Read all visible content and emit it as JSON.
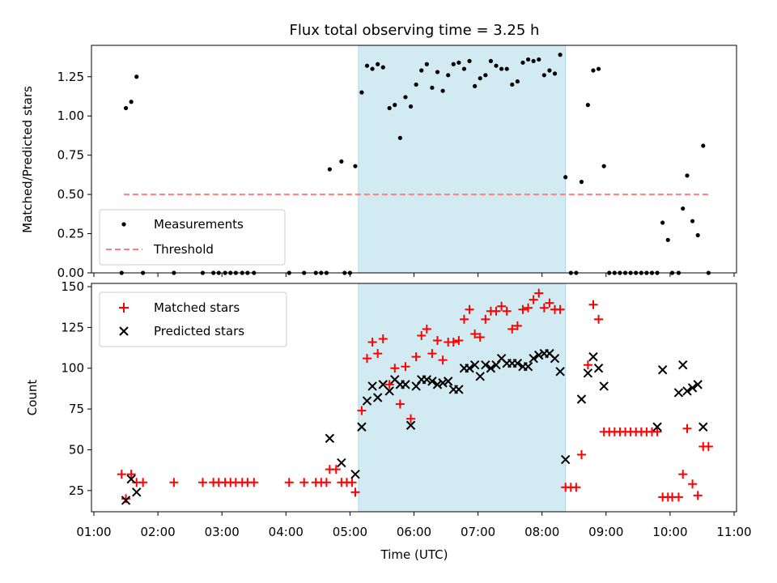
{
  "chart_data": [
    {
      "type": "scatter",
      "title": "Flux total observing time = 3.25 h",
      "ylabel": "Matched/Predicted stars",
      "xlabel": "",
      "xlim": [
        "01:00",
        "11:00"
      ],
      "ylim": [
        0,
        1.45
      ],
      "yticks": [
        "0.00",
        "0.25",
        "0.50",
        "0.75",
        "1.00",
        "1.25"
      ],
      "grid": false,
      "legend_position": "lower-left",
      "shaded_span": {
        "start": "05:08",
        "end": "08:22",
        "color": "#add8e6"
      },
      "threshold": {
        "name": "Threshold",
        "value": 0.5,
        "x_start": "01:28",
        "x_end": "10:38",
        "color": "#ff7f7f"
      },
      "series": [
        {
          "name": "Measurements",
          "marker": "dot",
          "color": "#000000",
          "points": [
            [
              "01:26",
              0.0
            ],
            [
              "01:30",
              1.05
            ],
            [
              "01:35",
              1.09
            ],
            [
              "01:40",
              1.25
            ],
            [
              "01:46",
              0.0
            ],
            [
              "02:15",
              0.0
            ],
            [
              "02:42",
              0.0
            ],
            [
              "02:52",
              0.0
            ],
            [
              "02:57",
              0.0
            ],
            [
              "03:03",
              0.0
            ],
            [
              "03:08",
              0.0
            ],
            [
              "03:13",
              0.0
            ],
            [
              "03:19",
              0.0
            ],
            [
              "03:24",
              0.0
            ],
            [
              "03:30",
              0.0
            ],
            [
              "04:03",
              0.0
            ],
            [
              "04:17",
              0.0
            ],
            [
              "04:28",
              0.0
            ],
            [
              "04:33",
              0.0
            ],
            [
              "04:38",
              0.0
            ],
            [
              "04:41",
              0.66
            ],
            [
              "04:52",
              0.71
            ],
            [
              "04:55",
              0.0
            ],
            [
              "05:00",
              0.0
            ],
            [
              "05:05",
              0.68
            ],
            [
              "05:11",
              1.15
            ],
            [
              "05:16",
              1.32
            ],
            [
              "05:21",
              1.3
            ],
            [
              "05:26",
              1.33
            ],
            [
              "05:31",
              1.31
            ],
            [
              "05:37",
              1.05
            ],
            [
              "05:42",
              1.07
            ],
            [
              "05:47",
              0.86
            ],
            [
              "05:52",
              1.12
            ],
            [
              "05:57",
              1.06
            ],
            [
              "06:02",
              1.2
            ],
            [
              "06:07",
              1.29
            ],
            [
              "06:12",
              1.33
            ],
            [
              "06:17",
              1.18
            ],
            [
              "06:22",
              1.28
            ],
            [
              "06:27",
              1.16
            ],
            [
              "06:32",
              1.26
            ],
            [
              "06:37",
              1.33
            ],
            [
              "06:42",
              1.34
            ],
            [
              "06:47",
              1.3
            ],
            [
              "06:52",
              1.35
            ],
            [
              "06:57",
              1.19
            ],
            [
              "07:02",
              1.24
            ],
            [
              "07:07",
              1.26
            ],
            [
              "07:12",
              1.35
            ],
            [
              "07:17",
              1.32
            ],
            [
              "07:22",
              1.3
            ],
            [
              "07:27",
              1.3
            ],
            [
              "07:32",
              1.2
            ],
            [
              "07:37",
              1.22
            ],
            [
              "07:42",
              1.34
            ],
            [
              "07:47",
              1.36
            ],
            [
              "07:52",
              1.35
            ],
            [
              "07:57",
              1.36
            ],
            [
              "08:02",
              1.26
            ],
            [
              "08:07",
              1.29
            ],
            [
              "08:12",
              1.27
            ],
            [
              "08:17",
              1.39
            ],
            [
              "08:22",
              0.61
            ],
            [
              "08:27",
              0.0
            ],
            [
              "08:32",
              0.0
            ],
            [
              "08:37",
              0.58
            ],
            [
              "08:43",
              1.07
            ],
            [
              "08:48",
              1.29
            ],
            [
              "08:53",
              1.3
            ],
            [
              "08:58",
              0.68
            ],
            [
              "09:03",
              0.0
            ],
            [
              "09:08",
              0.0
            ],
            [
              "09:13",
              0.0
            ],
            [
              "09:18",
              0.0
            ],
            [
              "09:23",
              0.0
            ],
            [
              "09:28",
              0.0
            ],
            [
              "09:33",
              0.0
            ],
            [
              "09:38",
              0.0
            ],
            [
              "09:43",
              0.0
            ],
            [
              "09:48",
              0.0
            ],
            [
              "09:53",
              0.32
            ],
            [
              "09:58",
              0.21
            ],
            [
              "10:02",
              0.0
            ],
            [
              "10:08",
              0.0
            ],
            [
              "10:12",
              0.41
            ],
            [
              "10:16",
              0.62
            ],
            [
              "10:21",
              0.33
            ],
            [
              "10:26",
              0.24
            ],
            [
              "10:31",
              0.81
            ],
            [
              "10:36",
              0.0
            ]
          ]
        }
      ]
    },
    {
      "type": "scatter",
      "title": "",
      "ylabel": "Count",
      "xlabel": "Time (UTC)",
      "xlim": [
        "01:00",
        "11:00"
      ],
      "ylim": [
        12,
        152
      ],
      "yticks": [
        "25",
        "50",
        "75",
        "100",
        "125",
        "150"
      ],
      "xticks": [
        "01:00",
        "02:00",
        "03:00",
        "04:00",
        "05:00",
        "06:00",
        "07:00",
        "08:00",
        "09:00",
        "10:00",
        "11:00"
      ],
      "grid": false,
      "legend_position": "upper-left",
      "shaded_span": {
        "start": "05:08",
        "end": "08:22",
        "color": "#add8e6"
      },
      "series": [
        {
          "name": "Matched stars",
          "marker": "plus",
          "color": "#ff0000",
          "points": [
            [
              "01:26",
              35
            ],
            [
              "01:30",
              20
            ],
            [
              "01:35",
              35
            ],
            [
              "01:40",
              30
            ],
            [
              "01:46",
              30
            ],
            [
              "02:15",
              30
            ],
            [
              "02:42",
              30
            ],
            [
              "02:52",
              30
            ],
            [
              "02:57",
              30
            ],
            [
              "03:03",
              30
            ],
            [
              "03:08",
              30
            ],
            [
              "03:13",
              30
            ],
            [
              "03:19",
              30
            ],
            [
              "03:24",
              30
            ],
            [
              "03:30",
              30
            ],
            [
              "04:03",
              30
            ],
            [
              "04:17",
              30
            ],
            [
              "04:28",
              30
            ],
            [
              "04:33",
              30
            ],
            [
              "04:38",
              30
            ],
            [
              "04:41",
              38
            ],
            [
              "04:47",
              38
            ],
            [
              "04:52",
              30
            ],
            [
              "04:57",
              30
            ],
            [
              "05:02",
              30
            ],
            [
              "05:05",
              24
            ],
            [
              "05:11",
              74
            ],
            [
              "05:16",
              106
            ],
            [
              "05:21",
              116
            ],
            [
              "05:26",
              109
            ],
            [
              "05:31",
              118
            ],
            [
              "05:37",
              90
            ],
            [
              "05:42",
              100
            ],
            [
              "05:47",
              78
            ],
            [
              "05:52",
              101
            ],
            [
              "05:57",
              69
            ],
            [
              "06:02",
              107
            ],
            [
              "06:07",
              120
            ],
            [
              "06:12",
              124
            ],
            [
              "06:17",
              109
            ],
            [
              "06:22",
              117
            ],
            [
              "06:27",
              105
            ],
            [
              "06:32",
              116
            ],
            [
              "06:37",
              116
            ],
            [
              "06:42",
              117
            ],
            [
              "06:47",
              130
            ],
            [
              "06:52",
              136
            ],
            [
              "06:57",
              121
            ],
            [
              "07:02",
              119
            ],
            [
              "07:07",
              130
            ],
            [
              "07:12",
              135
            ],
            [
              "07:17",
              135
            ],
            [
              "07:22",
              138
            ],
            [
              "07:27",
              135
            ],
            [
              "07:32",
              124
            ],
            [
              "07:37",
              126
            ],
            [
              "07:42",
              136
            ],
            [
              "07:47",
              137
            ],
            [
              "07:52",
              142
            ],
            [
              "07:57",
              146
            ],
            [
              "08:02",
              137
            ],
            [
              "08:07",
              140
            ],
            [
              "08:12",
              136
            ],
            [
              "08:17",
              136
            ],
            [
              "08:22",
              27
            ],
            [
              "08:27",
              27
            ],
            [
              "08:32",
              27
            ],
            [
              "08:37",
              47
            ],
            [
              "08:43",
              102
            ],
            [
              "08:48",
              139
            ],
            [
              "08:53",
              130
            ],
            [
              "08:58",
              61
            ],
            [
              "09:03",
              61
            ],
            [
              "09:08",
              61
            ],
            [
              "09:13",
              61
            ],
            [
              "09:18",
              61
            ],
            [
              "09:23",
              61
            ],
            [
              "09:28",
              61
            ],
            [
              "09:33",
              61
            ],
            [
              "09:38",
              61
            ],
            [
              "09:43",
              61
            ],
            [
              "09:48",
              61
            ],
            [
              "09:53",
              21
            ],
            [
              "09:58",
              21
            ],
            [
              "10:02",
              21
            ],
            [
              "10:08",
              21
            ],
            [
              "10:12",
              35
            ],
            [
              "10:16",
              63
            ],
            [
              "10:21",
              29
            ],
            [
              "10:26",
              22
            ],
            [
              "10:31",
              52
            ],
            [
              "10:36",
              52
            ]
          ]
        },
        {
          "name": "Predicted stars",
          "marker": "x",
          "color": "#000000",
          "points": [
            [
              "01:30",
              19
            ],
            [
              "01:35",
              32
            ],
            [
              "01:40",
              24
            ],
            [
              "04:41",
              57
            ],
            [
              "04:52",
              42
            ],
            [
              "05:05",
              35
            ],
            [
              "05:11",
              64
            ],
            [
              "05:16",
              80
            ],
            [
              "05:21",
              89
            ],
            [
              "05:26",
              82
            ],
            [
              "05:31",
              90
            ],
            [
              "05:37",
              86
            ],
            [
              "05:42",
              93
            ],
            [
              "05:47",
              90
            ],
            [
              "05:52",
              90
            ],
            [
              "05:57",
              65
            ],
            [
              "06:02",
              89
            ],
            [
              "06:07",
              93
            ],
            [
              "06:12",
              93
            ],
            [
              "06:17",
              92
            ],
            [
              "06:22",
              90
            ],
            [
              "06:27",
              91
            ],
            [
              "06:32",
              92
            ],
            [
              "06:37",
              87
            ],
            [
              "06:42",
              87
            ],
            [
              "06:47",
              100
            ],
            [
              "06:52",
              100
            ],
            [
              "06:57",
              102
            ],
            [
              "07:02",
              95
            ],
            [
              "07:07",
              102
            ],
            [
              "07:12",
              100
            ],
            [
              "07:17",
              102
            ],
            [
              "07:22",
              106
            ],
            [
              "07:27",
              103
            ],
            [
              "07:32",
              103
            ],
            [
              "07:37",
              103
            ],
            [
              "07:42",
              101
            ],
            [
              "07:47",
              101
            ],
            [
              "07:52",
              106
            ],
            [
              "07:57",
              108
            ],
            [
              "08:02",
              109
            ],
            [
              "08:07",
              109
            ],
            [
              "08:12",
              106
            ],
            [
              "08:17",
              98
            ],
            [
              "08:22",
              44
            ],
            [
              "08:37",
              81
            ],
            [
              "08:43",
              97
            ],
            [
              "08:48",
              107
            ],
            [
              "08:53",
              100
            ],
            [
              "08:58",
              89
            ],
            [
              "09:48",
              64
            ],
            [
              "09:53",
              99
            ],
            [
              "10:08",
              85
            ],
            [
              "10:12",
              102
            ],
            [
              "10:16",
              86
            ],
            [
              "10:21",
              88
            ],
            [
              "10:26",
              90
            ],
            [
              "10:31",
              64
            ]
          ]
        }
      ]
    }
  ]
}
